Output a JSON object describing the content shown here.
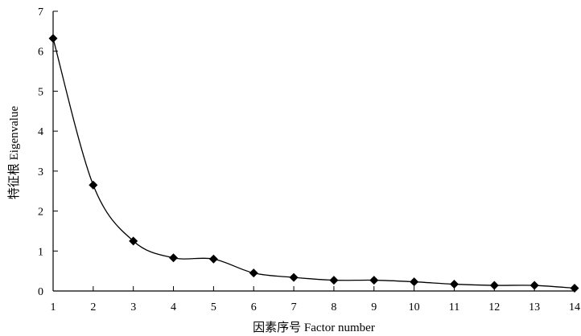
{
  "chart_data": {
    "type": "line",
    "title": "",
    "xlabel": "因素序号 Factor number",
    "ylabel": "特征根 Eigenvalue",
    "x": [
      1,
      2,
      3,
      4,
      5,
      6,
      7,
      8,
      9,
      10,
      11,
      12,
      13,
      14
    ],
    "series": [
      {
        "values": [
          6.32,
          2.65,
          1.25,
          0.83,
          0.8,
          0.45,
          0.34,
          0.27,
          0.27,
          0.23,
          0.17,
          0.14,
          0.14,
          0.07
        ],
        "color": "#000000",
        "marker": "diamond"
      }
    ],
    "xlim": [
      1,
      14
    ],
    "ylim": [
      0,
      7
    ],
    "x_ticks": [
      "1",
      "2",
      "3",
      "4",
      "5",
      "6",
      "7",
      "8",
      "9",
      "10",
      "11",
      "12",
      "13",
      "14"
    ],
    "y_ticks": [
      "0",
      "1",
      "2",
      "3",
      "4",
      "5",
      "6",
      "7"
    ],
    "grid": false,
    "legend": "none"
  }
}
